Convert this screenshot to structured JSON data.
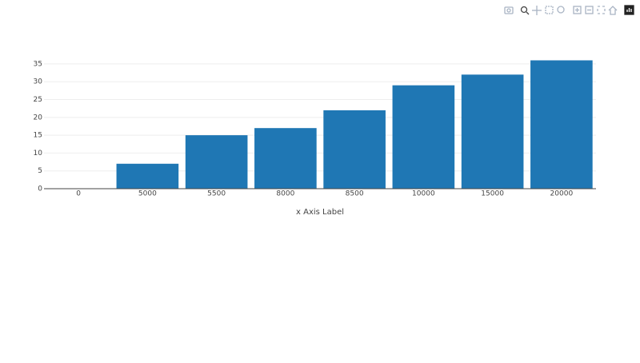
{
  "chart_data": {
    "type": "bar",
    "x_label": "x Axis Label",
    "categories": [
      "0",
      "5000",
      "5500",
      "8000",
      "8500",
      "10000",
      "15000",
      "20000"
    ],
    "values": [
      0,
      7,
      15,
      17,
      22,
      29,
      32,
      36
    ],
    "color": "#1f77b4",
    "ylim": [
      0,
      37.9
    ],
    "yticks": [
      0,
      5,
      10,
      15,
      20,
      25,
      30,
      35
    ],
    "grid": true
  }
}
